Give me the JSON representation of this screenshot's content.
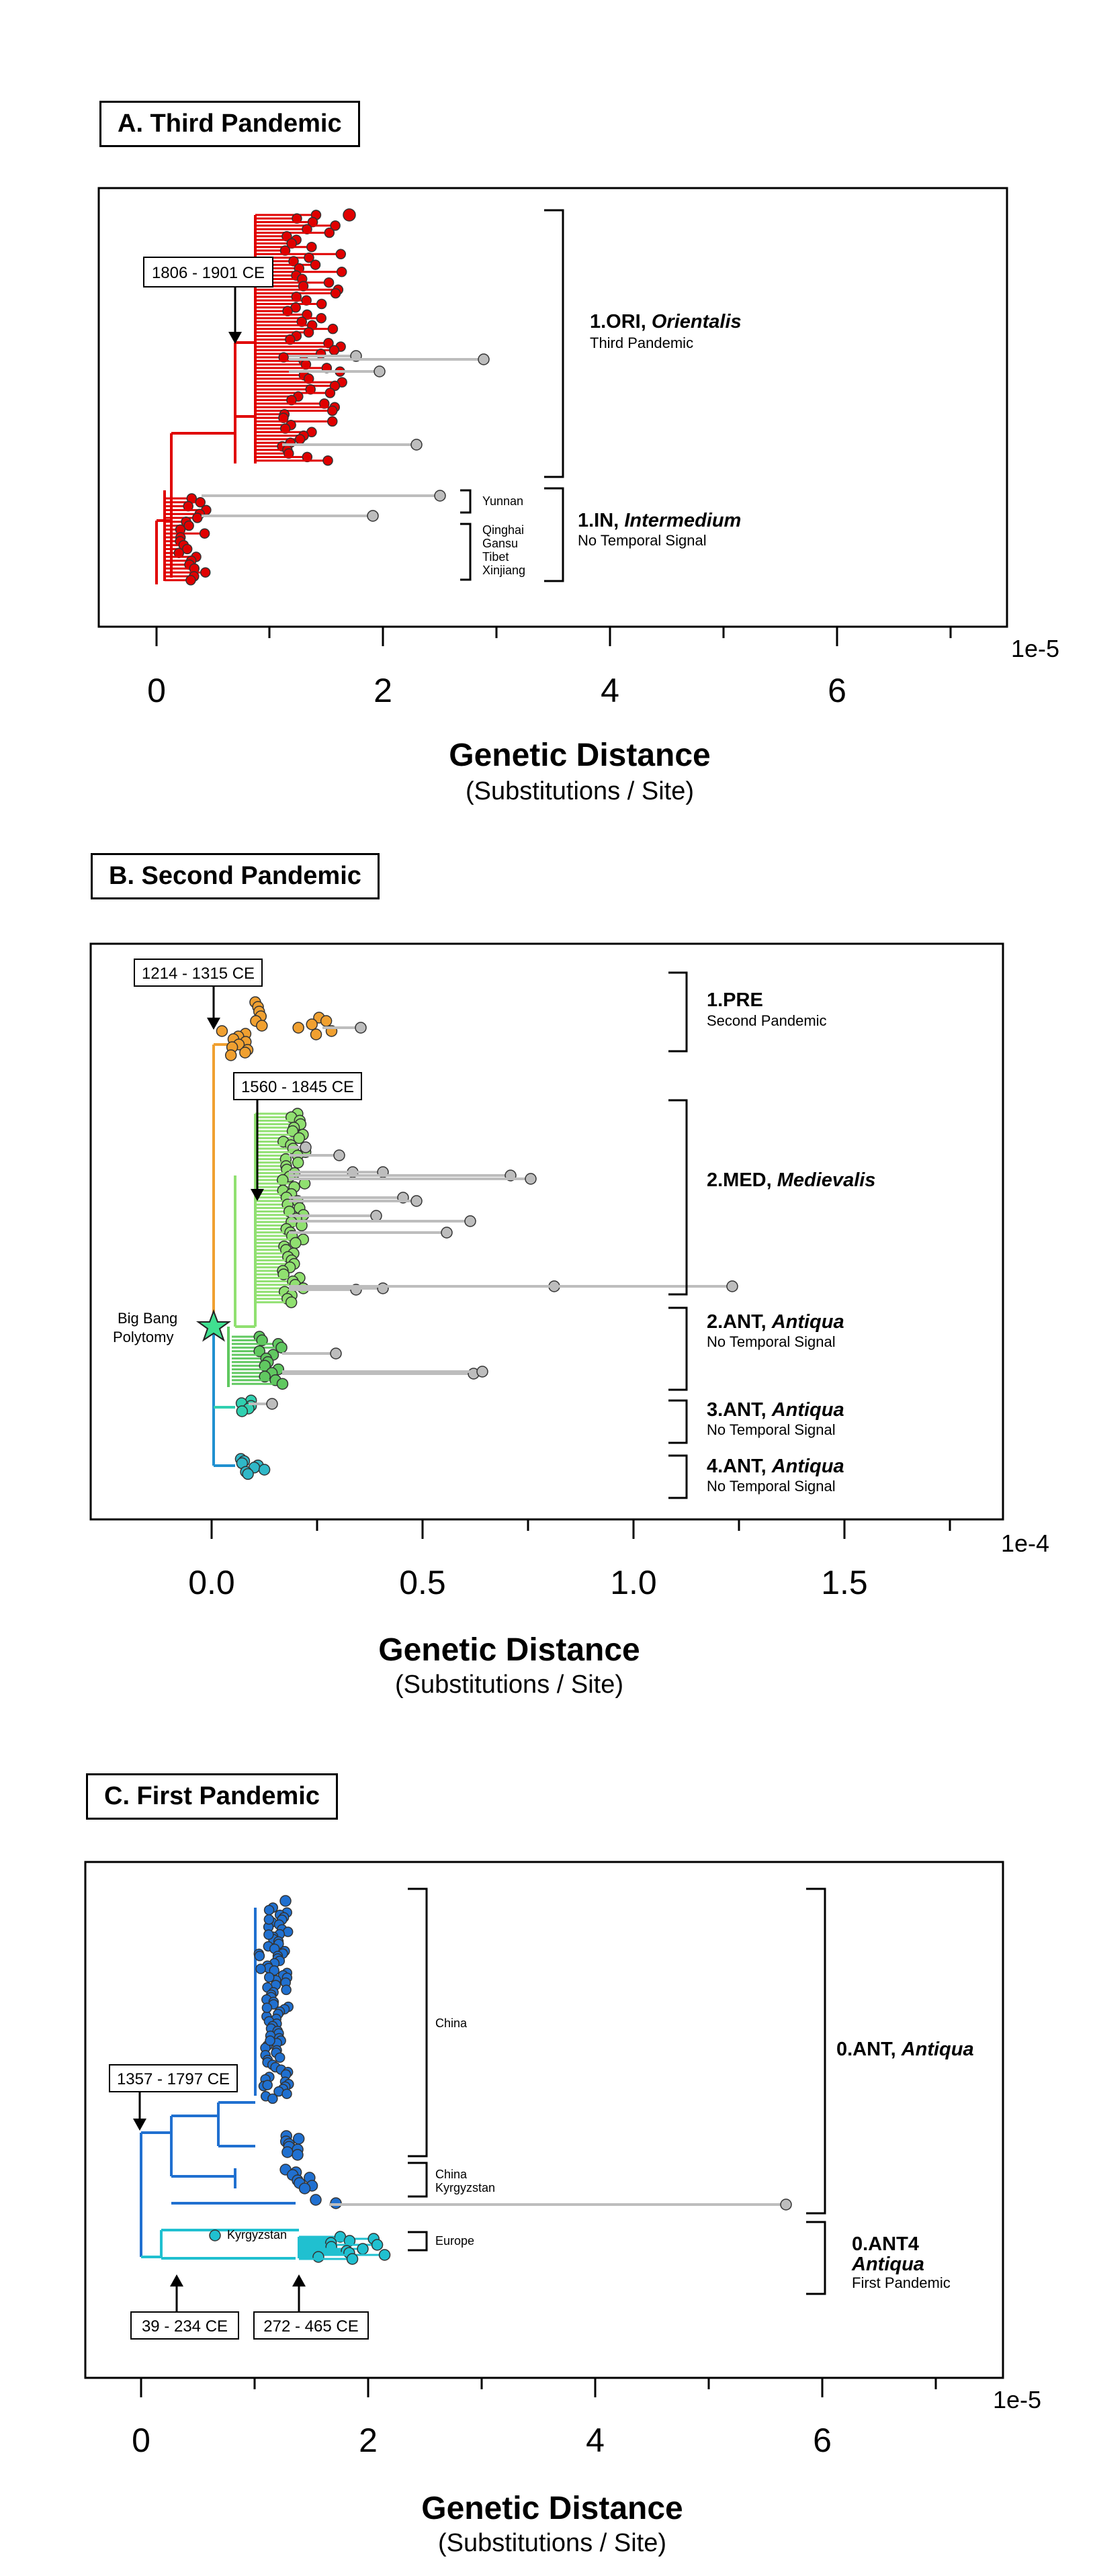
{
  "panels": [
    {
      "id": "A",
      "title": "A. Third Pandemic",
      "color": "#e00000",
      "xaxis": {
        "ticks": [
          "0",
          "2",
          "4",
          "6"
        ],
        "scale": "1e-5",
        "label": "Genetic Distance",
        "sublabel": "(Substitutions / Site)"
      },
      "date_labels": [
        "1806 - 1901 CE"
      ],
      "regions": [
        "Yunnan",
        "Qinghai",
        "Gansu",
        "Tibet",
        "Xinjiang"
      ],
      "clades": [
        {
          "name": "1.ORI, ",
          "italic": "Orientalis",
          "sub": "Third Pandemic"
        },
        {
          "name": "1.IN, ",
          "italic": "Intermedium",
          "sub": "No Temporal Signal"
        }
      ]
    },
    {
      "id": "B",
      "title": "B. Second Pandemic",
      "colors": {
        "pre": "#f0a030",
        "med": "#90e070",
        "ant2": "#60c860",
        "ant3": "#30d0b0",
        "ant4": "#30b8c8",
        "root": "#2090d0",
        "star": "#40e090"
      },
      "xaxis": {
        "ticks": [
          "0.0",
          "0.5",
          "1.0",
          "1.5"
        ],
        "scale": "1e-4",
        "label": "Genetic Distance",
        "sublabel": "(Substitutions / Site)"
      },
      "date_labels": [
        "1214 - 1315 CE",
        "1560 - 1845 CE"
      ],
      "polytomy_label_1": "Big Bang",
      "polytomy_label_2": "Polytomy",
      "clades": [
        {
          "name": "1.PRE",
          "italic": "",
          "sub": "Second Pandemic"
        },
        {
          "name": "2.MED, ",
          "italic": "Medievalis",
          "sub": ""
        },
        {
          "name": "2.ANT, ",
          "italic": "Antiqua",
          "sub": "No Temporal Signal"
        },
        {
          "name": "3.ANT, ",
          "italic": "Antiqua",
          "sub": "No Temporal Signal"
        },
        {
          "name": "4.ANT, ",
          "italic": "Antiqua",
          "sub": "No Temporal Signal"
        }
      ]
    },
    {
      "id": "C",
      "title": "C. First Pandemic",
      "colors": {
        "main": "#2070d0",
        "ant4": "#20c0d0"
      },
      "xaxis": {
        "ticks": [
          "0",
          "2",
          "4",
          "6"
        ],
        "scale": "1e-5",
        "label": "Genetic Distance",
        "sublabel": "(Substitutions / Site)"
      },
      "date_labels": [
        "1357 - 1797 CE",
        "39 - 234 CE",
        "272 - 465 CE"
      ],
      "regions": [
        "China",
        "China",
        "Kyrgyzstan",
        "Europe",
        "Kyrgyzstan"
      ],
      "clades": [
        {
          "name": "0.ANT, ",
          "italic": "Antiqua",
          "sub": ""
        },
        {
          "name": "0.ANT4",
          "italic": "Antiqua",
          "sub": "First Pandemic"
        }
      ]
    }
  ]
}
